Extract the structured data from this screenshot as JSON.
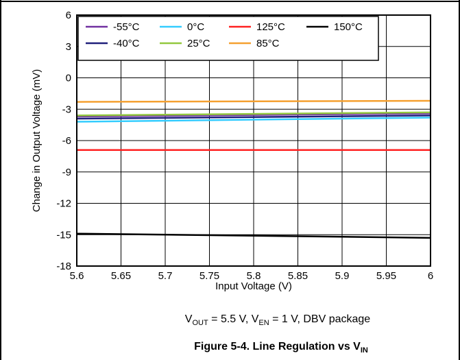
{
  "chart_data": {
    "type": "line",
    "xlabel": "Input Voltage (V)",
    "ylabel": "Change in Output Voltage (mV)",
    "xlim": [
      5.6,
      6
    ],
    "ylim": [
      -18,
      6
    ],
    "x_ticks": [
      "5.6",
      "5.65",
      "5.7",
      "5.75",
      "5.8",
      "5.85",
      "5.9",
      "5.95",
      "6"
    ],
    "y_ticks": [
      "6",
      "3",
      "0",
      "-3",
      "-6",
      "-9",
      "-12",
      "-15",
      "-18"
    ],
    "grid": true,
    "legend_placement": "top-left",
    "x": [
      5.6,
      6.0
    ],
    "series": [
      {
        "name": "-55°C",
        "color": "#7030a0",
        "values": [
          -3.7,
          -3.4
        ]
      },
      {
        "name": "-40°C",
        "color": "#1f1f7a",
        "values": [
          -3.9,
          -3.6
        ]
      },
      {
        "name": "0°C",
        "color": "#33ccff",
        "values": [
          -4.2,
          -3.8
        ]
      },
      {
        "name": "25°C",
        "color": "#92c83e",
        "values": [
          -3.6,
          -3.3
        ]
      },
      {
        "name": "125°C",
        "color": "#ff2020",
        "values": [
          -6.9,
          -6.9
        ]
      },
      {
        "name": "85°C",
        "color": "#f5a030",
        "values": [
          -2.3,
          -2.2
        ]
      },
      {
        "name": "150°C",
        "color": "#000000",
        "values": [
          -14.9,
          -15.3
        ]
      }
    ],
    "legend_rows": [
      [
        "-55°C",
        "0°C",
        "125°C",
        "150°C"
      ],
      [
        "-40°C",
        "25°C",
        "85°C"
      ]
    ]
  },
  "caption": {
    "v1": "V",
    "v1_sub": "OUT",
    "part1": " = 5.5 V, V",
    "v2_sub": "EN",
    "part2": " = 1 V, DBV package"
  },
  "figure_title": {
    "main": "Figure 5-4. Line Regulation vs V",
    "sub": "IN"
  }
}
